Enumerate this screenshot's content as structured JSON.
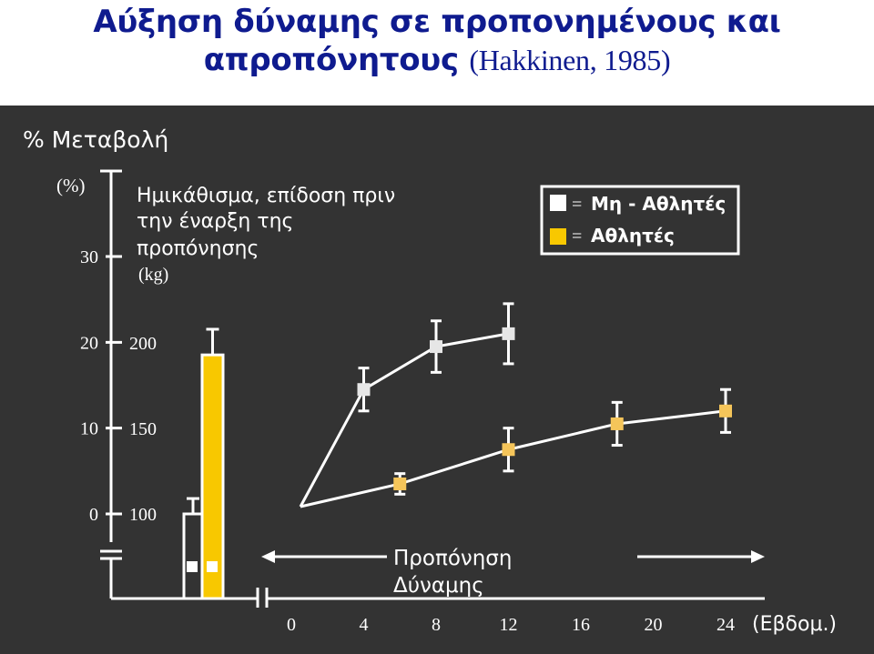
{
  "title": {
    "line1": "Αύξηση δύναμης σε προπονημένους και",
    "line2_main": "απροπόνητους ",
    "line2_cite": "(Hakkinen, 1985)"
  },
  "labels": {
    "pct_change": "% Μεταβολή",
    "pct_unit": "(%)",
    "squat_line1": "Ημικάθισμα, επίδοση πριν",
    "squat_line2": "την έναρξη της",
    "squat_line3": "προπόνησης",
    "squat_unit": "(kg)",
    "training_line1": "Προπόνηση",
    "training_line2": "Δύναμης",
    "weeks_unit": "(Εβδομ.)"
  },
  "legend": {
    "non_athletes": "Μη - Αθλητές",
    "athletes": "Αθλητές",
    "eq": "="
  },
  "colors": {
    "non_athletes": "#e6e6e6",
    "athletes": "#f5c55a",
    "athletes_bar": "#f8c800",
    "panel_bg": "#333333",
    "title": "#0f1b8f"
  },
  "chart_data": [
    {
      "type": "bar",
      "ylabel": "(kg)",
      "ylim": [
        100,
        200
      ],
      "yticks": [
        "100",
        "150",
        "200"
      ],
      "series": [
        {
          "name": "Μη - Αθλητές",
          "value": 100,
          "error": 9
        },
        {
          "name": "Αθλητές",
          "value": 193,
          "error": 15
        }
      ]
    },
    {
      "type": "line",
      "ylabel": "(%)",
      "xlabel": "(Εβδομ.)",
      "ylim": [
        0,
        30
      ],
      "yticks": [
        "0",
        "10",
        "20",
        "30"
      ],
      "xticks": [
        "0",
        "4",
        "8",
        "12",
        "16",
        "20",
        "24"
      ],
      "series": [
        {
          "name": "Μη - Αθλητές",
          "points": [
            [
              0,
              0
            ],
            [
              4,
              14.5
            ],
            [
              8,
              19.5
            ],
            [
              12,
              21
            ]
          ],
          "errors": [
            0,
            2.5,
            3,
            3.5
          ]
        },
        {
          "name": "Αθλητές",
          "points": [
            [
              0,
              0
            ],
            [
              6,
              3.5
            ],
            [
              12,
              7.5
            ],
            [
              18,
              10.5
            ],
            [
              24,
              12
            ]
          ],
          "errors": [
            0,
            1.2,
            2.5,
            2.5,
            2.5
          ]
        }
      ]
    }
  ]
}
